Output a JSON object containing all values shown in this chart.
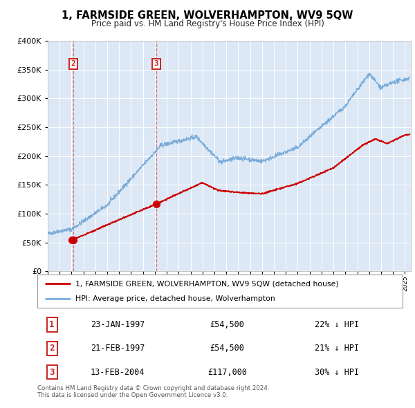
{
  "title": "1, FARMSIDE GREEN, WOLVERHAMPTON, WV9 5QW",
  "subtitle": "Price paid vs. HM Land Registry's House Price Index (HPI)",
  "ylim": [
    0,
    400000
  ],
  "xlim_start": 1995.0,
  "xlim_end": 2025.5,
  "plot_bg_color": "#dce8f5",
  "grid_color": "#ffffff",
  "sale_line_color": "#cc0000",
  "hpi_line_color": "#7aacda",
  "marker_size": 7,
  "legend_label_sale": "1, FARMSIDE GREEN, WOLVERHAMPTON, WV9 5QW (detached house)",
  "legend_label_hpi": "HPI: Average price, detached house, Wolverhampton",
  "transactions": [
    {
      "num": 1,
      "date": "23-JAN-1997",
      "price": 54500,
      "hpi_diff": "22% ↓ HPI",
      "year": 1997.06
    },
    {
      "num": 2,
      "date": "21-FEB-1997",
      "price": 54500,
      "hpi_diff": "21% ↓ HPI",
      "year": 1997.13
    },
    {
      "num": 3,
      "date": "13-FEB-2004",
      "price": 117000,
      "hpi_diff": "30% ↓ HPI",
      "year": 2004.12
    }
  ],
  "footer_line1": "Contains HM Land Registry data © Crown copyright and database right 2024.",
  "footer_line2": "This data is licensed under the Open Government Licence v3.0.",
  "ytick_values": [
    0,
    50000,
    100000,
    150000,
    200000,
    250000,
    300000,
    350000,
    400000
  ],
  "vline_color": "#dd5555",
  "box_edge_color": "#cc2222"
}
